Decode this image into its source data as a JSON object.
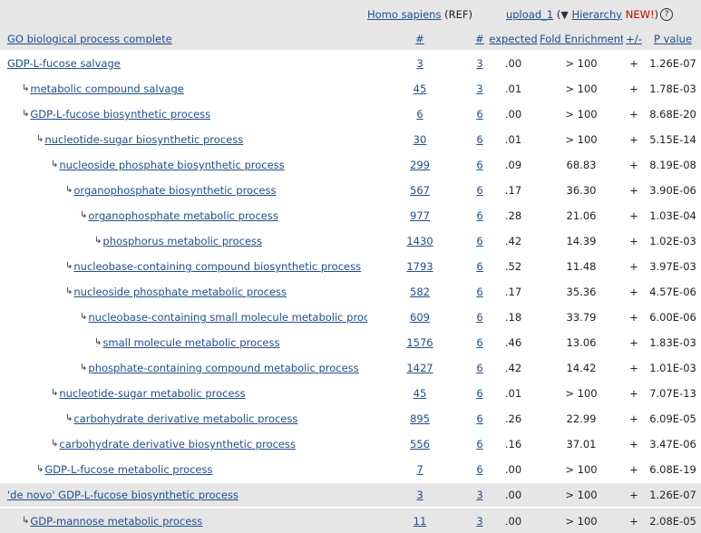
{
  "header": {
    "ref_organism": "Homo sapiens",
    "ref_suffix": "(REF)",
    "upload_label": "upload_1",
    "open_paren": "(",
    "triangle": "▼",
    "hierarchy_label": "Hierarchy",
    "new_label": "NEW!",
    "close_paren": ")",
    "help_icon": "?",
    "term_col": "GO biological process complete",
    "ref_count_col": "#",
    "count_col": "#",
    "expected_col": "expected",
    "fold_col": "Fold Enrichment",
    "dir_col": "+/-",
    "p_col": "P value"
  },
  "rows": [
    {
      "term": "GDP-L-fucose salvage",
      "level": 0,
      "ref": "3",
      "count": "3",
      "expected": ".00",
      "fold": "> 100",
      "dir": "+",
      "p": "1.26E-07",
      "group": false
    },
    {
      "term": "metabolic compound salvage",
      "level": 1,
      "ref": "45",
      "count": "3",
      "expected": ".01",
      "fold": "> 100",
      "dir": "+",
      "p": "1.78E-03",
      "group": false
    },
    {
      "term": "GDP-L-fucose biosynthetic process",
      "level": 1,
      "ref": "6",
      "count": "6",
      "expected": ".00",
      "fold": "> 100",
      "dir": "+",
      "p": "8.68E-20",
      "group": false
    },
    {
      "term": "nucleotide-sugar biosynthetic process",
      "level": 2,
      "ref": "30",
      "count": "6",
      "expected": ".01",
      "fold": "> 100",
      "dir": "+",
      "p": "5.15E-14",
      "group": false
    },
    {
      "term": "nucleoside phosphate biosynthetic process",
      "level": 3,
      "ref": "299",
      "count": "6",
      "expected": ".09",
      "fold": "68.83",
      "dir": "+",
      "p": "8.19E-08",
      "group": false
    },
    {
      "term": "organophosphate biosynthetic process",
      "level": 4,
      "ref": "567",
      "count": "6",
      "expected": ".17",
      "fold": "36.30",
      "dir": "+",
      "p": "3.90E-06",
      "group": false
    },
    {
      "term": "organophosphate metabolic process",
      "level": 5,
      "ref": "977",
      "count": "6",
      "expected": ".28",
      "fold": "21.06",
      "dir": "+",
      "p": "1.03E-04",
      "group": false
    },
    {
      "term": "phosphorus metabolic process",
      "level": 6,
      "ref": "1430",
      "count": "6",
      "expected": ".42",
      "fold": "14.39",
      "dir": "+",
      "p": "1.02E-03",
      "group": false
    },
    {
      "term": "nucleobase-containing compound biosynthetic process",
      "level": 4,
      "ref": "1793",
      "count": "6",
      "expected": ".52",
      "fold": "11.48",
      "dir": "+",
      "p": "3.97E-03",
      "group": false
    },
    {
      "term": "nucleoside phosphate metabolic process",
      "level": 4,
      "ref": "582",
      "count": "6",
      "expected": ".17",
      "fold": "35.36",
      "dir": "+",
      "p": "4.57E-06",
      "group": false
    },
    {
      "term": "nucleobase-containing small molecule metabolic process",
      "level": 5,
      "ref": "609",
      "count": "6",
      "expected": ".18",
      "fold": "33.79",
      "dir": "+",
      "p": "6.00E-06",
      "group": false
    },
    {
      "term": "small molecule metabolic process",
      "level": 6,
      "ref": "1576",
      "count": "6",
      "expected": ".46",
      "fold": "13.06",
      "dir": "+",
      "p": "1.83E-03",
      "group": false
    },
    {
      "term": "phosphate-containing compound metabolic process",
      "level": 5,
      "ref": "1427",
      "count": "6",
      "expected": ".42",
      "fold": "14.42",
      "dir": "+",
      "p": "1.01E-03",
      "group": false
    },
    {
      "term": "nucleotide-sugar metabolic process",
      "level": 3,
      "ref": "45",
      "count": "6",
      "expected": ".01",
      "fold": "> 100",
      "dir": "+",
      "p": "7.07E-13",
      "group": false
    },
    {
      "term": "carbohydrate derivative metabolic process",
      "level": 4,
      "ref": "895",
      "count": "6",
      "expected": ".26",
      "fold": "22.99",
      "dir": "+",
      "p": "6.09E-05",
      "group": false
    },
    {
      "term": "carbohydrate derivative biosynthetic process",
      "level": 3,
      "ref": "556",
      "count": "6",
      "expected": ".16",
      "fold": "37.01",
      "dir": "+",
      "p": "3.47E-06",
      "group": false
    },
    {
      "term": "GDP-L-fucose metabolic process",
      "level": 2,
      "ref": "7",
      "count": "6",
      "expected": ".00",
      "fold": "> 100",
      "dir": "+",
      "p": "6.08E-19",
      "group": false
    },
    {
      "term": "'de novo' GDP-L-fucose biosynthetic process",
      "level": 0,
      "ref": "3",
      "count": "3",
      "expected": ".00",
      "fold": "> 100",
      "dir": "+",
      "p": "1.26E-07",
      "group": true
    },
    {
      "term": "GDP-mannose metabolic process",
      "level": 1,
      "ref": "11",
      "count": "3",
      "expected": ".00",
      "fold": "> 100",
      "dir": "+",
      "p": "2.08E-05",
      "group": true
    }
  ],
  "arrow_glyph": "↳",
  "colors": {
    "link": "#1f4e8c",
    "header_bg": "#e6e6e6",
    "new": "#d00000"
  }
}
